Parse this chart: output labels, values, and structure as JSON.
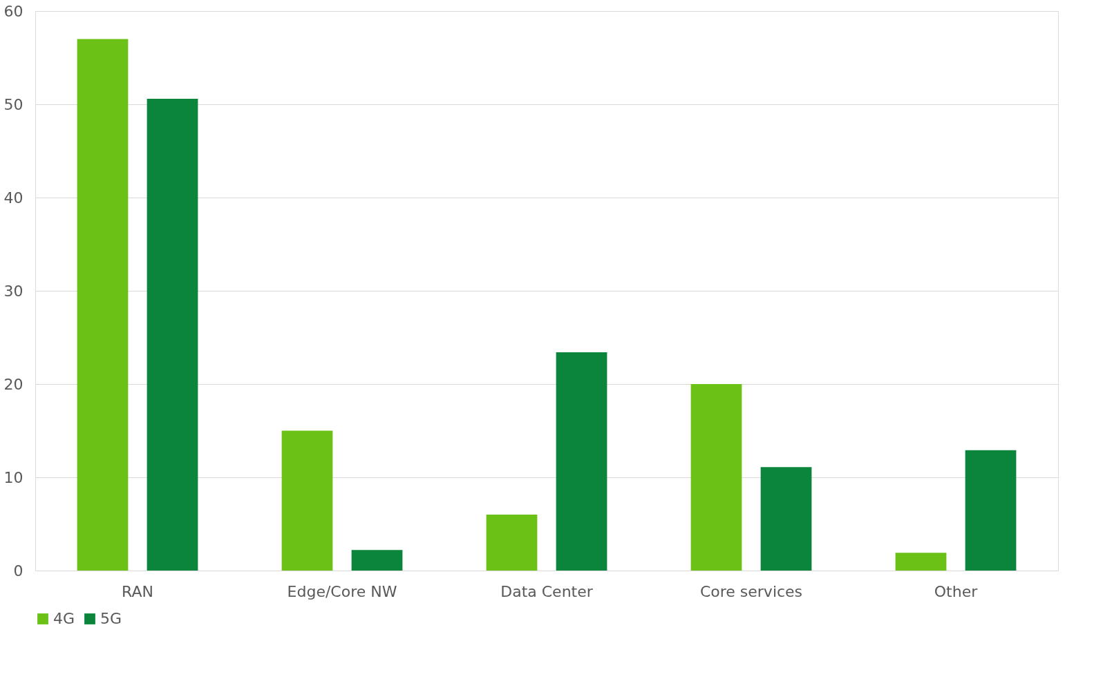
{
  "chart_data": {
    "type": "bar",
    "categories": [
      "RAN",
      "Edge/Core NW",
      "Data Center",
      "Core services",
      "Other"
    ],
    "series": [
      {
        "name": "4G",
        "color": "#6cc117",
        "values": [
          57.0,
          15.0,
          6.0,
          20.0,
          1.9
        ]
      },
      {
        "name": "5G",
        "color": "#0a853b",
        "values": [
          50.6,
          2.2,
          23.4,
          11.1,
          12.9
        ]
      }
    ],
    "ylim": [
      0,
      60
    ],
    "yticks": [
      0,
      10,
      20,
      30,
      40,
      50,
      60
    ],
    "grid": "y",
    "legend": "bottom"
  }
}
